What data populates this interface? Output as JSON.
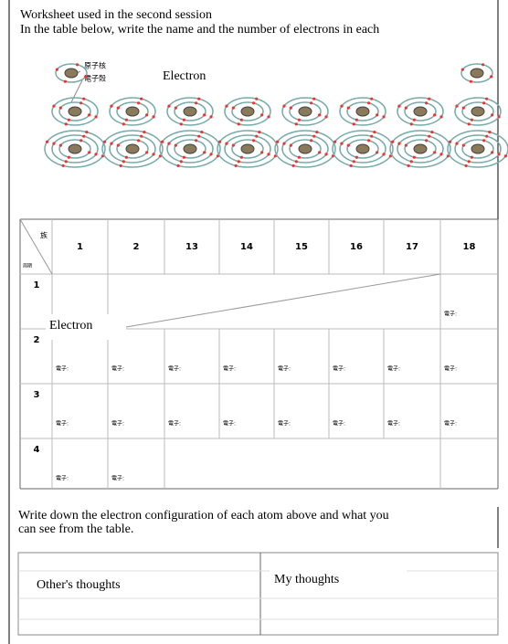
{
  "header": {
    "title": "Worksheet used in the second session",
    "instruction": "In the table below, write the name and the number of electrons in each"
  },
  "diagram": {
    "nucleus_label": "原子核",
    "shell_label": "電子殻",
    "electron_label": "Electron"
  },
  "table": {
    "group_label": "族",
    "period_label": "周期",
    "groups": [
      1,
      2,
      13,
      14,
      15,
      16,
      17,
      18
    ],
    "periods": [
      1,
      2,
      3,
      4
    ],
    "cell_label": "電子:",
    "callout": "Electron"
  },
  "footer": {
    "prompt_line1": "Write down the electron configuration of each atom above and what you",
    "prompt_line2": "can see from the table.",
    "others": "Other's thoughts",
    "mine": "My thoughts"
  }
}
